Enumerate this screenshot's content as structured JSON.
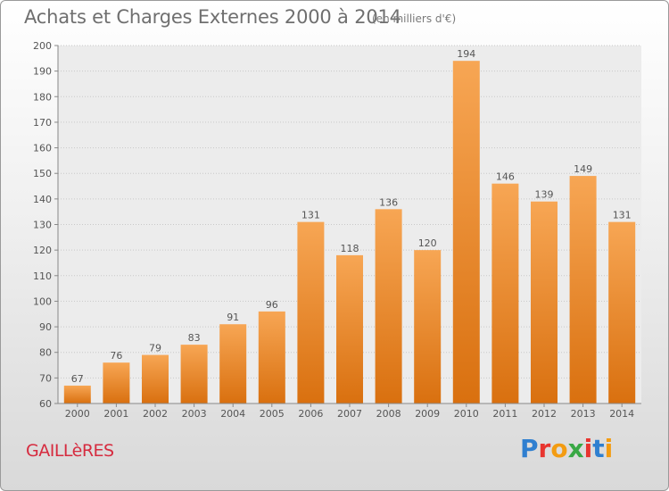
{
  "title": "Achats et Charges Externes 2000 à 2014",
  "subtitle": "(en milliers d'€)",
  "commune": "GAILLèRES",
  "logo": {
    "text": "Proxiti",
    "colors": [
      "#2f7fd0",
      "#e8352f",
      "#f39c12",
      "#39a845",
      "#e8352f",
      "#2f7fd0",
      "#f39c12"
    ]
  },
  "chart_data": {
    "type": "bar",
    "title": "Achats et Charges Externes 2000 à 2014",
    "subtitle": "(en milliers d'€)",
    "xlabel": "",
    "ylabel": "",
    "categories": [
      "2000",
      "2001",
      "2002",
      "2003",
      "2004",
      "2005",
      "2006",
      "2007",
      "2008",
      "2009",
      "2010",
      "2011",
      "2012",
      "2013",
      "2014"
    ],
    "values": [
      67,
      76,
      79,
      83,
      91,
      96,
      131,
      118,
      136,
      120,
      194,
      146,
      139,
      149,
      131
    ],
    "ylim": [
      60,
      200
    ],
    "yticks": [
      60,
      70,
      80,
      90,
      100,
      110,
      120,
      130,
      140,
      150,
      160,
      170,
      180,
      190,
      200
    ],
    "grid": true,
    "bar_color": "#f0892a"
  }
}
